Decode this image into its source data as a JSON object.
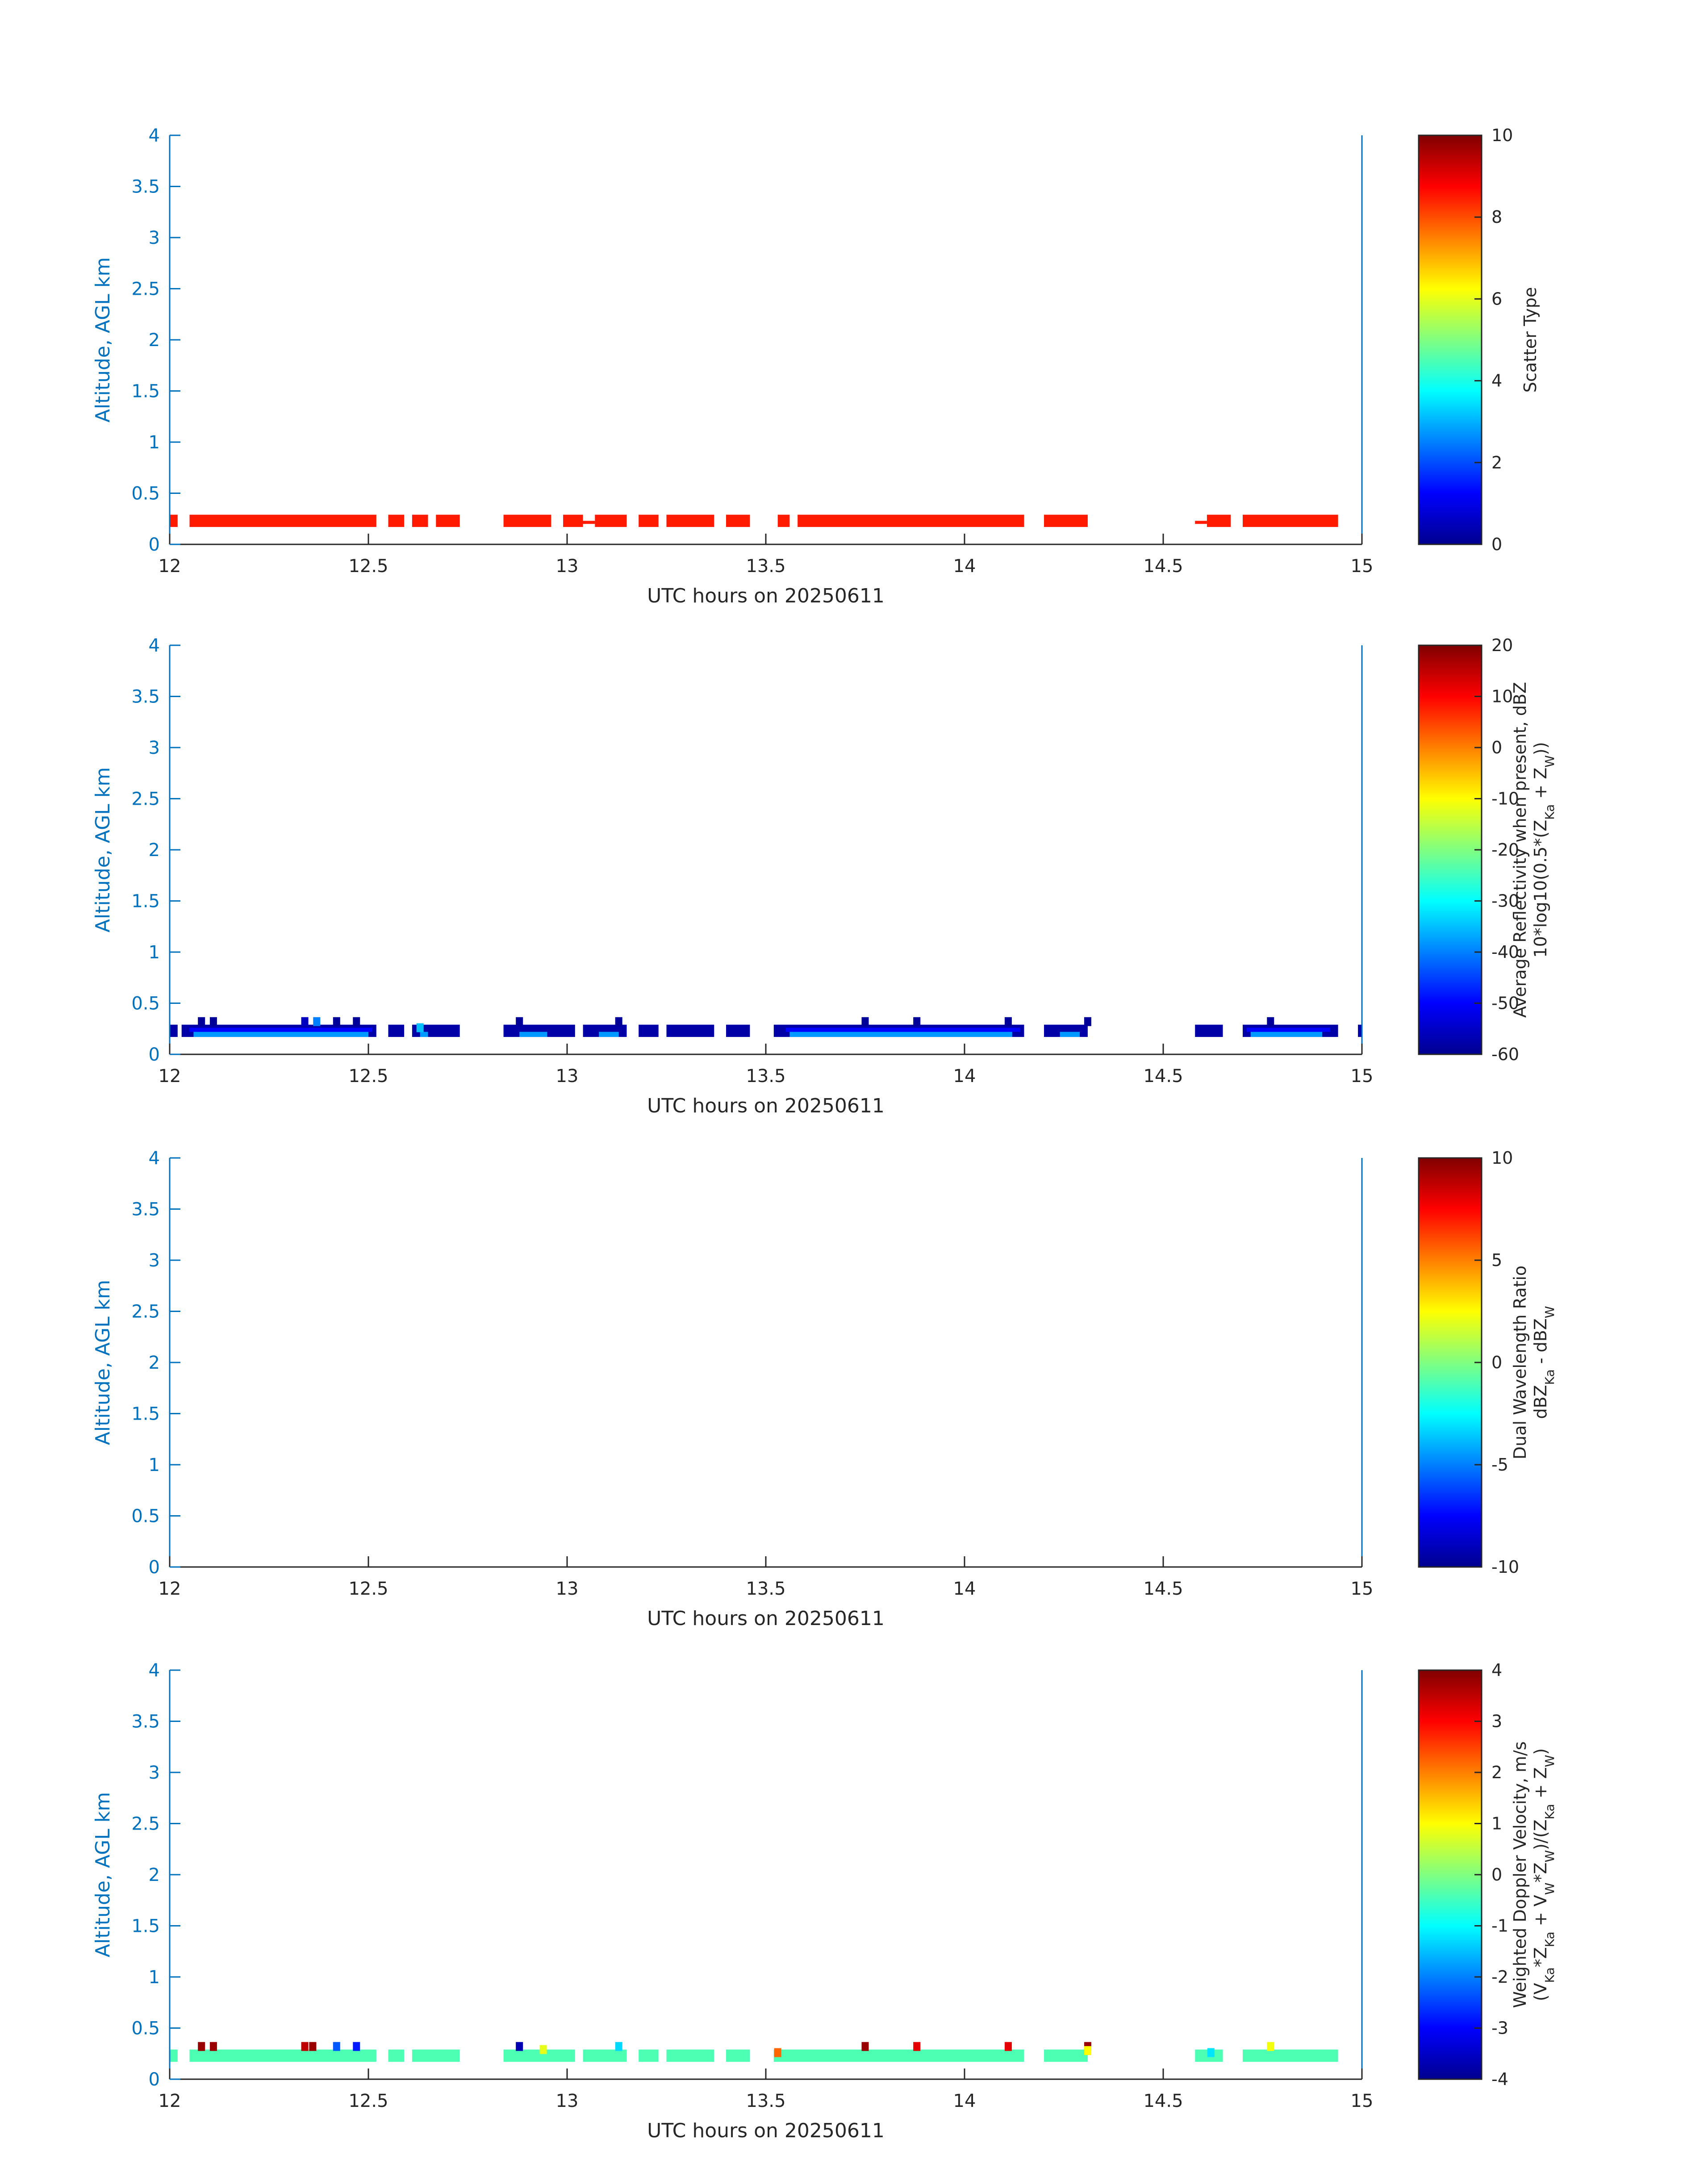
{
  "chart_data": [
    {
      "type": "heatmap",
      "xlabel": "UTC hours on 20250611",
      "ylabel": "Altitude, AGL km",
      "xlim": [
        12,
        15
      ],
      "ylim": [
        0,
        4
      ],
      "xticks": [
        "12",
        "12.5",
        "13",
        "13.5",
        "14",
        "14.5",
        "15"
      ],
      "yticks": [
        "0",
        "0.5",
        "1",
        "1.5",
        "2",
        "2.5",
        "3",
        "3.5",
        "4"
      ],
      "colorbar": {
        "label_lines": [
          "Scatter Type"
        ],
        "range": [
          0,
          10
        ],
        "ticks": [
          "0",
          "2",
          "4",
          "6",
          "8",
          "10"
        ]
      },
      "layers": [
        {
          "z0": 0.17,
          "z1": 0.29,
          "value": 8.5,
          "segments": [
            [
              12.0,
              12.02
            ],
            [
              12.05,
              12.52
            ],
            [
              12.55,
              12.59
            ],
            [
              12.61,
              12.65
            ],
            [
              12.67,
              12.73
            ],
            [
              12.84,
              12.96
            ],
            [
              12.99,
              13.04
            ],
            [
              13.07,
              13.15
            ],
            [
              13.18,
              13.23
            ],
            [
              13.25,
              13.37
            ],
            [
              13.4,
              13.46
            ],
            [
              13.53,
              13.56
            ],
            [
              13.58,
              14.15
            ],
            [
              14.2,
              14.31
            ],
            [
              14.61,
              14.67
            ],
            [
              14.7,
              14.94
            ]
          ]
        },
        {
          "z0": 0.2,
          "z1": 0.23,
          "value": 8.5,
          "segments": [
            [
              12.61,
              12.63
            ],
            [
              13.03,
              13.07
            ],
            [
              14.58,
              14.61
            ]
          ]
        }
      ],
      "spots": []
    },
    {
      "type": "heatmap",
      "xlabel": "UTC hours on 20250611",
      "ylabel": "Altitude, AGL km",
      "xlim": [
        12,
        15
      ],
      "ylim": [
        0,
        4
      ],
      "xticks": [
        "12",
        "12.5",
        "13",
        "13.5",
        "14",
        "14.5",
        "15"
      ],
      "yticks": [
        "0",
        "0.5",
        "1",
        "1.5",
        "2",
        "2.5",
        "3",
        "3.5",
        "4"
      ],
      "colorbar": {
        "label_lines": [
          "Average Reflectivity when present, dBZ",
          "10*log10(0.5*(Z_Ka + Z_W))"
        ],
        "range": [
          -60,
          20
        ],
        "ticks": [
          "-60",
          "-50",
          "-40",
          "-30",
          "-20",
          "-10",
          "0",
          "10",
          "20"
        ]
      },
      "layers": [
        {
          "z0": 0.17,
          "z1": 0.29,
          "value": -57,
          "segments": [
            [
              12.0,
              12.02
            ],
            [
              12.03,
              12.52
            ],
            [
              12.55,
              12.59
            ],
            [
              12.61,
              12.73
            ],
            [
              12.84,
              13.02
            ],
            [
              13.04,
              13.15
            ],
            [
              13.18,
              13.23
            ],
            [
              13.25,
              13.37
            ],
            [
              13.4,
              13.46
            ],
            [
              13.52,
              14.15
            ],
            [
              14.2,
              14.31
            ],
            [
              14.58,
              14.65
            ],
            [
              14.7,
              14.94
            ],
            [
              14.99,
              15.0
            ]
          ]
        },
        {
          "z0": 0.17,
          "z1": 0.22,
          "value": -38,
          "segments": [
            [
              12.06,
              12.5
            ],
            [
              12.63,
              12.65
            ],
            [
              12.88,
              12.95
            ],
            [
              13.08,
              13.13
            ],
            [
              13.56,
              14.12
            ],
            [
              14.24,
              14.29
            ],
            [
              14.72,
              14.9
            ]
          ]
        },
        {
          "z0": 0.22,
          "z1": 0.26,
          "value": -50,
          "segments": [
            [
              12.05,
              12.51
            ],
            [
              13.55,
              14.14
            ],
            [
              14.71,
              14.92
            ]
          ]
        }
      ],
      "spots": [
        {
          "x": 12.08,
          "z": 0.32,
          "value": -58
        },
        {
          "x": 12.11,
          "z": 0.32,
          "value": -58
        },
        {
          "x": 12.34,
          "z": 0.32,
          "value": -55
        },
        {
          "x": 12.37,
          "z": 0.32,
          "value": -40
        },
        {
          "x": 12.42,
          "z": 0.32,
          "value": -58
        },
        {
          "x": 12.47,
          "z": 0.32,
          "value": -58
        },
        {
          "x": 12.88,
          "z": 0.32,
          "value": -58
        },
        {
          "x": 13.13,
          "z": 0.32,
          "value": -58
        },
        {
          "x": 13.75,
          "z": 0.32,
          "value": -58
        },
        {
          "x": 13.88,
          "z": 0.32,
          "value": -58
        },
        {
          "x": 14.11,
          "z": 0.32,
          "value": -58
        },
        {
          "x": 14.31,
          "z": 0.32,
          "value": -58
        },
        {
          "x": 14.77,
          "z": 0.32,
          "value": -58
        },
        {
          "x": 12.63,
          "z": 0.26,
          "value": -35
        }
      ]
    },
    {
      "type": "heatmap",
      "xlabel": "UTC hours on 20250611",
      "ylabel": "Altitude, AGL km",
      "xlim": [
        12,
        15
      ],
      "ylim": [
        0,
        4
      ],
      "xticks": [
        "12",
        "12.5",
        "13",
        "13.5",
        "14",
        "14.5",
        "15"
      ],
      "yticks": [
        "0",
        "0.5",
        "1",
        "1.5",
        "2",
        "2.5",
        "3",
        "3.5",
        "4"
      ],
      "colorbar": {
        "label_lines": [
          "Dual Wavelength Ratio",
          "dBZ_Ka - dBZ_W"
        ],
        "range": [
          -10,
          10
        ],
        "ticks": [
          "-10",
          "-5",
          "0",
          "5",
          "10"
        ]
      },
      "layers": [],
      "spots": []
    },
    {
      "type": "heatmap",
      "xlabel": "UTC hours on 20250611",
      "ylabel": "Altitude, AGL km",
      "xlim": [
        12,
        15
      ],
      "ylim": [
        0,
        4
      ],
      "xticks": [
        "12",
        "12.5",
        "13",
        "13.5",
        "14",
        "14.5",
        "15"
      ],
      "yticks": [
        "0",
        "0.5",
        "1",
        "1.5",
        "2",
        "2.5",
        "3",
        "3.5",
        "4"
      ],
      "colorbar": {
        "label_lines": [
          "Weighted Doppler Velocity, m/s",
          "(V_Ka*Z_Ka + V_W*Z_W)/(Z_Ka + Z_W)"
        ],
        "range": [
          -4,
          4
        ],
        "ticks": [
          "-4",
          "-3",
          "-2",
          "-1",
          "0",
          "1",
          "2",
          "3",
          "4"
        ]
      },
      "layers": [
        {
          "z0": 0.17,
          "z1": 0.29,
          "value": -0.4,
          "segments": [
            [
              12.0,
              12.02
            ],
            [
              12.05,
              12.52
            ],
            [
              12.55,
              12.59
            ],
            [
              12.61,
              12.73
            ],
            [
              12.84,
              13.02
            ],
            [
              13.04,
              13.15
            ],
            [
              13.18,
              13.23
            ],
            [
              13.25,
              13.37
            ],
            [
              13.4,
              13.46
            ],
            [
              13.52,
              14.15
            ],
            [
              14.2,
              14.31
            ],
            [
              14.58,
              14.65
            ],
            [
              14.7,
              14.94
            ]
          ]
        }
      ],
      "spots": [
        {
          "x": 12.08,
          "z": 0.32,
          "value": 3.8
        },
        {
          "x": 12.11,
          "z": 0.32,
          "value": 3.8
        },
        {
          "x": 12.34,
          "z": 0.32,
          "value": 3.5
        },
        {
          "x": 12.36,
          "z": 0.32,
          "value": 3.8
        },
        {
          "x": 12.42,
          "z": 0.32,
          "value": -2.3
        },
        {
          "x": 12.47,
          "z": 0.32,
          "value": -2.8
        },
        {
          "x": 12.88,
          "z": 0.32,
          "value": -3.6
        },
        {
          "x": 12.94,
          "z": 0.29,
          "value": 0.8
        },
        {
          "x": 13.13,
          "z": 0.32,
          "value": -1.3
        },
        {
          "x": 13.53,
          "z": 0.26,
          "value": 2.2
        },
        {
          "x": 13.75,
          "z": 0.32,
          "value": 3.8
        },
        {
          "x": 13.88,
          "z": 0.32,
          "value": 3.2
        },
        {
          "x": 14.11,
          "z": 0.32,
          "value": 3.2
        },
        {
          "x": 14.31,
          "z": 0.32,
          "value": 3.8
        },
        {
          "x": 14.31,
          "z": 0.28,
          "value": 1.0
        },
        {
          "x": 14.77,
          "z": 0.32,
          "value": 0.9
        },
        {
          "x": 14.62,
          "z": 0.26,
          "value": -1.2
        }
      ]
    }
  ]
}
